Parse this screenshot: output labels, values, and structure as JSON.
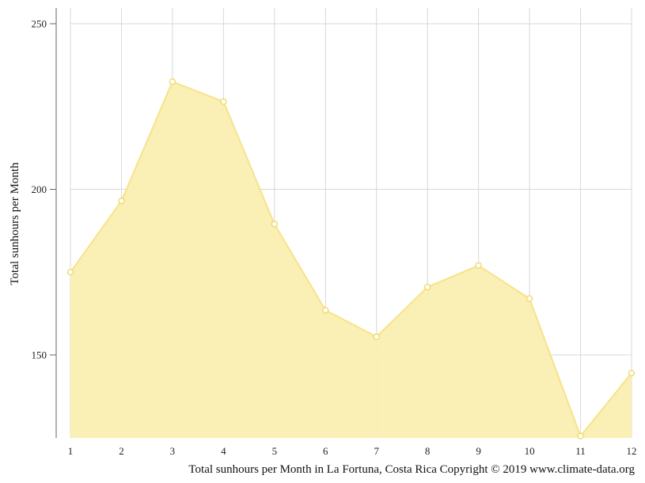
{
  "chart_data": {
    "type": "area",
    "x": [
      1,
      2,
      3,
      4,
      5,
      6,
      7,
      8,
      9,
      10,
      11,
      12
    ],
    "series": [
      {
        "values": [
          175,
          196.5,
          232.5,
          226.5,
          189.5,
          163.5,
          155.5,
          170.5,
          177,
          167,
          125.5,
          144.5
        ]
      }
    ],
    "ylabel": "Total sunhours per Month",
    "xlabel": "",
    "caption": "Total sunhours per Month in La Fortuna, Costa Rica Copyright © 2019 www.climate-data.org",
    "xlim": [
      1,
      12
    ],
    "ylim": [
      125,
      255
    ],
    "yticks": [
      150,
      200,
      250
    ],
    "xticks": [
      1,
      2,
      3,
      4,
      5,
      6,
      7,
      8,
      9,
      10,
      11,
      12
    ],
    "grid": true,
    "colors": {
      "fill": "#faeeb0",
      "line": "#f7e38a",
      "marker_stroke": "#f0d660",
      "grid": "#d8d8d8",
      "axis": "#666666"
    }
  }
}
